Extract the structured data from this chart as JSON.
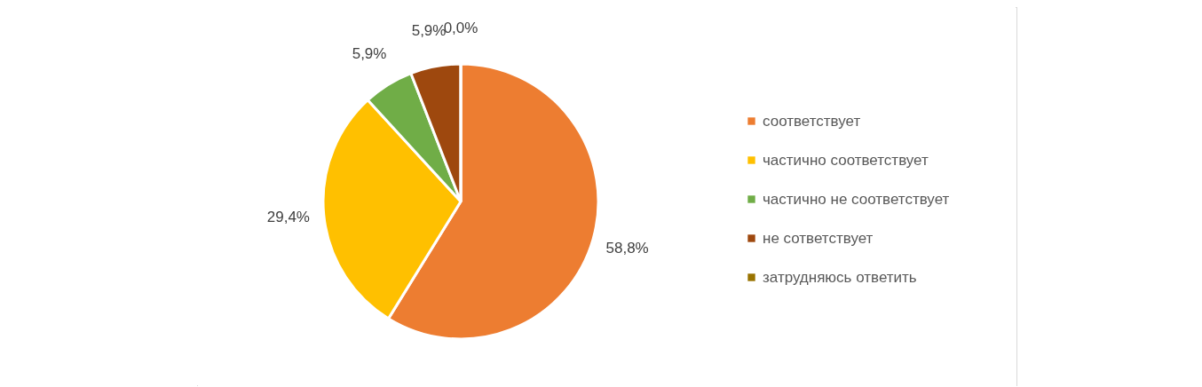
{
  "chart_data": {
    "type": "pie",
    "categories": [
      "соответствует",
      "частично соответствует",
      "частично не соответствует",
      "не сответствует",
      "затрудняюсь ответить"
    ],
    "values": [
      58.8,
      29.4,
      5.9,
      5.9,
      0.0
    ],
    "value_labels": [
      "58,8%",
      "29,4%",
      "5,9%",
      "5,9%",
      "0,0%"
    ],
    "colors": [
      "#ed7d31",
      "#ffc000",
      "#70ad47",
      "#9e480e",
      "#997300"
    ],
    "legend": "right"
  }
}
